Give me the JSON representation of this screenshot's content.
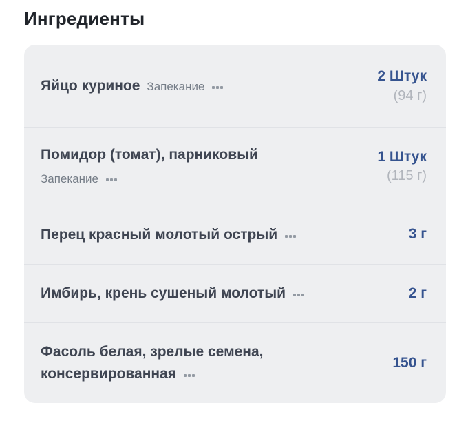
{
  "header": {
    "title": "Ингредиенты"
  },
  "colors": {
    "quantity_blue": "#35538f",
    "card_background": "#eeeff1",
    "name_text": "#3f4552",
    "method_text": "#757d87",
    "weight_text": "#b1b5bc",
    "divider": "#e0e2e6"
  },
  "icons": {
    "more_options": "ellipsis-three-dots"
  },
  "ingredients": [
    {
      "name": "Яйцо куриное",
      "method": "Запекание",
      "quantity": "2 Штук",
      "weight": "(94 г)"
    },
    {
      "name": "Помидор (томат), парниковый",
      "method": "Запекание",
      "quantity": "1 Штук",
      "weight": "(115 г)"
    },
    {
      "name": "Перец красный молотый острый",
      "quantity": "3 г"
    },
    {
      "name": "Имбирь, крень сушеный молотый",
      "quantity": "2 г"
    },
    {
      "name": "Фасоль белая, зрелые семена, консервированная",
      "quantity": "150 г"
    }
  ]
}
